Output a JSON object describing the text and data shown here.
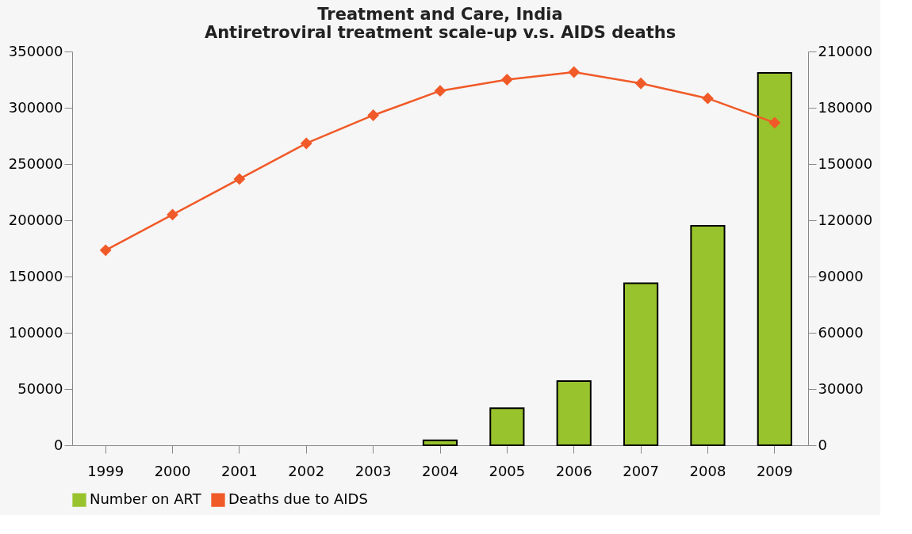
{
  "chart_data": {
    "type": "bar",
    "title": [
      "Treatment and Care, India",
      "Antiretroviral treatment scale-up v.s. AIDS deaths"
    ],
    "categories": [
      "1999",
      "2000",
      "2001",
      "2002",
      "2003",
      "2004",
      "2005",
      "2006",
      "2007",
      "2008",
      "2009"
    ],
    "series": [
      {
        "name": "Number on ART",
        "color": "#99c32c",
        "values": [
          null,
          null,
          null,
          null,
          null,
          4400,
          33000,
          57000,
          144000,
          195000,
          331000
        ]
      },
      {
        "name": "Deaths due to AIDS",
        "type": "line",
        "axis": "y2",
        "color": "#f05a28",
        "marker": "diamond",
        "values": [
          104000,
          123000,
          142000,
          161000,
          176000,
          189000,
          195000,
          199000,
          193000,
          185000,
          172000
        ]
      }
    ],
    "ylim": [
      0,
      350000
    ],
    "yticks": [
      0,
      50000,
      100000,
      150000,
      200000,
      250000,
      300000,
      350000
    ],
    "y2lim": [
      0,
      210000
    ],
    "y2ticks": [
      0,
      30000,
      60000,
      90000,
      120000,
      150000,
      180000,
      210000
    ],
    "grid": false,
    "legend": "bottom"
  }
}
